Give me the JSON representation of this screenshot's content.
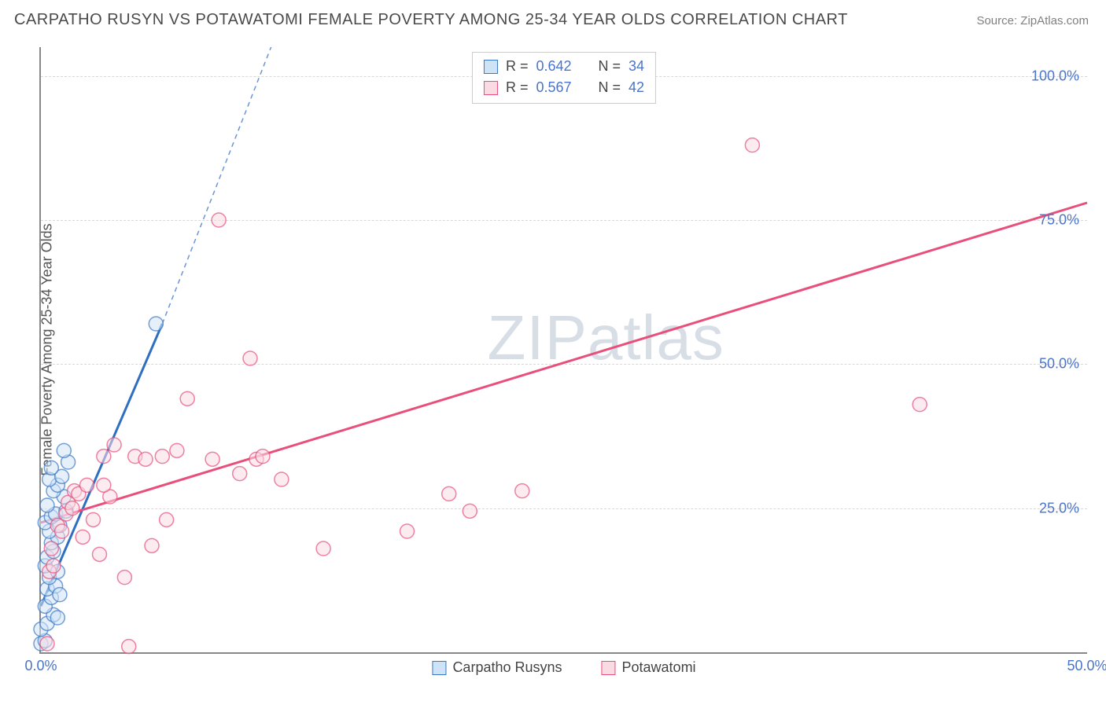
{
  "title": "CARPATHO RUSYN VS POTAWATOMI FEMALE POVERTY AMONG 25-34 YEAR OLDS CORRELATION CHART",
  "source": "Source: ZipAtlas.com",
  "ylabel": "Female Poverty Among 25-34 Year Olds",
  "watermark_a": "ZIP",
  "watermark_b": "atlas",
  "chart": {
    "type": "scatter",
    "xlim": [
      0,
      50
    ],
    "ylim": [
      0,
      105
    ],
    "xticks": [
      {
        "v": 0,
        "label": "0.0%"
      },
      {
        "v": 50,
        "label": "50.0%"
      }
    ],
    "yticks": [
      {
        "v": 25,
        "label": "25.0%"
      },
      {
        "v": 50,
        "label": "50.0%"
      },
      {
        "v": 75,
        "label": "75.0%"
      },
      {
        "v": 100,
        "label": "100.0%"
      }
    ],
    "grid_color": "#d8d8d8",
    "axis_color": "#888888",
    "background": "#ffffff",
    "marker_radius": 9,
    "marker_stroke_width": 1.5,
    "series": [
      {
        "name": "Carpatho Rusyns",
        "fill": "#cfe3f7",
        "stroke": "#3b78c4",
        "line_color": "#2f6fc1",
        "line_dash_color": "#6a95d6",
        "r": 0.642,
        "n": 34,
        "regression": {
          "x1": 0,
          "y1": 8,
          "x2": 5.8,
          "y2": 57,
          "dash_to_x": 11,
          "dash_to_y": 105
        },
        "points": [
          [
            0.0,
            1.5
          ],
          [
            0.2,
            2.0
          ],
          [
            0.0,
            4.0
          ],
          [
            0.3,
            5.0
          ],
          [
            0.6,
            6.5
          ],
          [
            0.8,
            6.0
          ],
          [
            0.2,
            8.0
          ],
          [
            0.5,
            9.5
          ],
          [
            0.3,
            11.0
          ],
          [
            0.7,
            11.5
          ],
          [
            0.9,
            10.0
          ],
          [
            0.4,
            13.0
          ],
          [
            0.8,
            14.0
          ],
          [
            0.2,
            15.0
          ],
          [
            0.3,
            16.5
          ],
          [
            0.6,
            17.5
          ],
          [
            0.5,
            19.0
          ],
          [
            0.8,
            20.0
          ],
          [
            0.4,
            21.0
          ],
          [
            0.2,
            22.5
          ],
          [
            0.9,
            22.0
          ],
          [
            0.5,
            23.5
          ],
          [
            0.7,
            24.0
          ],
          [
            1.2,
            24.5
          ],
          [
            0.3,
            25.5
          ],
          [
            1.1,
            27.0
          ],
          [
            0.6,
            28.0
          ],
          [
            0.8,
            29.0
          ],
          [
            0.4,
            30.0
          ],
          [
            1.0,
            30.5
          ],
          [
            0.5,
            32.0
          ],
          [
            1.3,
            33.0
          ],
          [
            1.1,
            35.0
          ],
          [
            5.5,
            57.0
          ]
        ]
      },
      {
        "name": "Potawatomi",
        "fill": "#fadbe4",
        "stroke": "#e84f7b",
        "line_color": "#e84f7b",
        "r": 0.567,
        "n": 42,
        "regression": {
          "x1": 0,
          "y1": 22.5,
          "x2": 50,
          "y2": 78
        },
        "points": [
          [
            0.3,
            1.5
          ],
          [
            0.4,
            14.0
          ],
          [
            0.6,
            15.0
          ],
          [
            0.5,
            18.0
          ],
          [
            0.8,
            22.0
          ],
          [
            1.0,
            21.0
          ],
          [
            1.2,
            24.0
          ],
          [
            1.3,
            26.0
          ],
          [
            1.5,
            25.0
          ],
          [
            1.6,
            28.0
          ],
          [
            1.8,
            27.5
          ],
          [
            2.0,
            20.0
          ],
          [
            2.2,
            29.0
          ],
          [
            2.5,
            23.0
          ],
          [
            2.8,
            17.0
          ],
          [
            3.0,
            34.0
          ],
          [
            3.3,
            27.0
          ],
          [
            3.5,
            36.0
          ],
          [
            4.0,
            13.0
          ],
          [
            4.5,
            34.0
          ],
          [
            4.2,
            1.0
          ],
          [
            5.0,
            33.5
          ],
          [
            5.3,
            18.5
          ],
          [
            5.8,
            34.0
          ],
          [
            6.0,
            23.0
          ],
          [
            6.5,
            35.0
          ],
          [
            7.0,
            44.0
          ],
          [
            8.2,
            33.5
          ],
          [
            8.5,
            75.0
          ],
          [
            9.5,
            31.0
          ],
          [
            10.0,
            51.0
          ],
          [
            10.3,
            33.5
          ],
          [
            10.6,
            34.0
          ],
          [
            11.5,
            30.0
          ],
          [
            13.5,
            18.0
          ],
          [
            17.5,
            21.0
          ],
          [
            19.5,
            27.5
          ],
          [
            20.5,
            24.5
          ],
          [
            23.0,
            28.0
          ],
          [
            34.0,
            88.0
          ],
          [
            42.0,
            43.0
          ],
          [
            3.0,
            29.0
          ]
        ]
      }
    ],
    "legend_bottom": [
      {
        "label": "Carpatho Rusyns",
        "fill": "#cfe3f7",
        "stroke": "#3b78c4"
      },
      {
        "label": "Potawatomi",
        "fill": "#fadbe4",
        "stroke": "#e84f7b"
      }
    ]
  }
}
